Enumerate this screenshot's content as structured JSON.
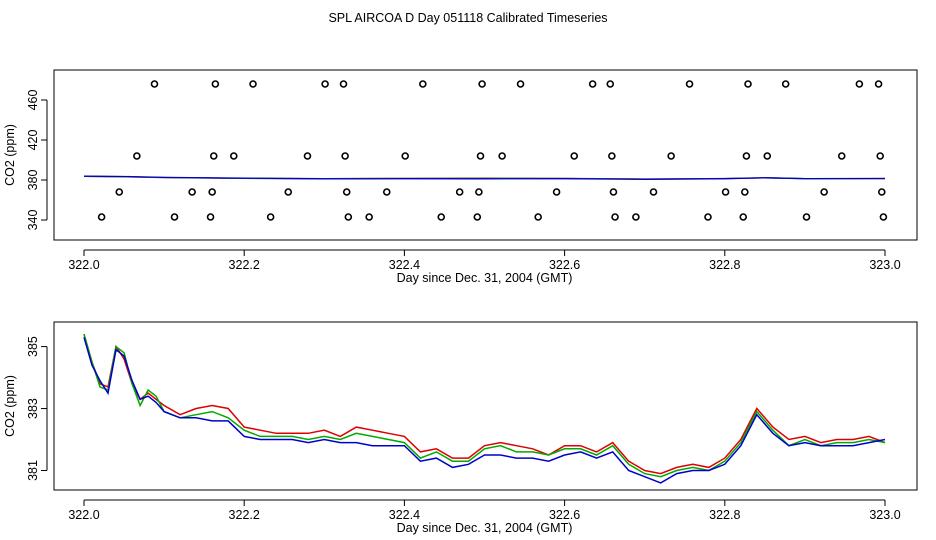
{
  "title": "SPL AIRCOA D  Day 051118  Calibrated Timeseries",
  "chart_data": [
    {
      "type": "scatter+line",
      "xlabel": "Day since Dec. 31, 2004 (GMT)",
      "ylabel": "CO2 (ppm)",
      "xlim": [
        322.0,
        323.0
      ],
      "ylim": [
        330,
        480
      ],
      "xticks": [
        322.0,
        322.2,
        322.4,
        322.6,
        322.8,
        323.0
      ],
      "xtick_labels": [
        "322.0",
        "322.2",
        "322.4",
        "322.6",
        "322.8",
        "323.0"
      ],
      "yticks": [
        340,
        380,
        420,
        460
      ],
      "ytick_labels": [
        "340",
        "380",
        "420",
        "460"
      ],
      "calibration_points": [
        {
          "x": 322.022,
          "y": 343
        },
        {
          "x": 322.044,
          "y": 368
        },
        {
          "x": 322.066,
          "y": 404
        },
        {
          "x": 322.088,
          "y": 476
        },
        {
          "x": 322.113,
          "y": 343
        },
        {
          "x": 322.135,
          "y": 368
        },
        {
          "x": 322.158,
          "y": 343
        },
        {
          "x": 322.16,
          "y": 368
        },
        {
          "x": 322.162,
          "y": 404
        },
        {
          "x": 322.164,
          "y": 476
        },
        {
          "x": 322.187,
          "y": 404
        },
        {
          "x": 322.211,
          "y": 476
        },
        {
          "x": 322.233,
          "y": 343
        },
        {
          "x": 322.255,
          "y": 368
        },
        {
          "x": 322.279,
          "y": 404
        },
        {
          "x": 322.301,
          "y": 476
        },
        {
          "x": 322.324,
          "y": 476
        },
        {
          "x": 322.326,
          "y": 404
        },
        {
          "x": 322.328,
          "y": 368
        },
        {
          "x": 322.33,
          "y": 343
        },
        {
          "x": 322.356,
          "y": 343
        },
        {
          "x": 322.378,
          "y": 368
        },
        {
          "x": 322.401,
          "y": 404
        },
        {
          "x": 322.423,
          "y": 476
        },
        {
          "x": 322.446,
          "y": 343
        },
        {
          "x": 322.469,
          "y": 368
        },
        {
          "x": 322.491,
          "y": 343
        },
        {
          "x": 322.493,
          "y": 368
        },
        {
          "x": 322.495,
          "y": 404
        },
        {
          "x": 322.497,
          "y": 476
        },
        {
          "x": 322.522,
          "y": 404
        },
        {
          "x": 322.545,
          "y": 476
        },
        {
          "x": 322.567,
          "y": 343
        },
        {
          "x": 322.59,
          "y": 368
        },
        {
          "x": 322.612,
          "y": 404
        },
        {
          "x": 322.635,
          "y": 476
        },
        {
          "x": 322.657,
          "y": 476
        },
        {
          "x": 322.659,
          "y": 404
        },
        {
          "x": 322.661,
          "y": 368
        },
        {
          "x": 322.663,
          "y": 343
        },
        {
          "x": 322.689,
          "y": 343
        },
        {
          "x": 322.711,
          "y": 368
        },
        {
          "x": 322.733,
          "y": 404
        },
        {
          "x": 322.756,
          "y": 476
        },
        {
          "x": 322.779,
          "y": 343
        },
        {
          "x": 322.801,
          "y": 368
        },
        {
          "x": 322.823,
          "y": 343
        },
        {
          "x": 322.825,
          "y": 368
        },
        {
          "x": 322.827,
          "y": 404
        },
        {
          "x": 322.829,
          "y": 476
        },
        {
          "x": 322.853,
          "y": 404
        },
        {
          "x": 322.876,
          "y": 476
        },
        {
          "x": 322.902,
          "y": 343
        },
        {
          "x": 322.924,
          "y": 368
        },
        {
          "x": 322.946,
          "y": 404
        },
        {
          "x": 322.968,
          "y": 476
        },
        {
          "x": 322.992,
          "y": 476
        },
        {
          "x": 322.994,
          "y": 404
        },
        {
          "x": 322.996,
          "y": 368
        },
        {
          "x": 322.998,
          "y": 343
        }
      ],
      "baseline_series": [
        {
          "name": "red",
          "color": "#dd0000",
          "x": [
            322.0,
            322.05,
            322.1,
            322.2,
            322.3,
            322.4,
            322.5,
            322.6,
            322.7,
            322.8,
            322.85,
            322.9,
            323.0
          ],
          "values": [
            383.6,
            383.2,
            382.4,
            381.7,
            381.4,
            381.6,
            381.8,
            381.6,
            381.0,
            381.5,
            382.3,
            381.4,
            381.5
          ]
        },
        {
          "name": "green",
          "color": "#00aa00",
          "x": [
            322.0,
            322.05,
            322.1,
            322.2,
            322.3,
            322.4,
            322.5,
            322.6,
            322.7,
            322.8,
            322.85,
            322.9,
            323.0
          ],
          "values": [
            383.7,
            383.3,
            382.5,
            381.6,
            381.3,
            381.5,
            381.6,
            381.5,
            380.9,
            381.4,
            382.2,
            381.3,
            381.4
          ]
        },
        {
          "name": "blue",
          "color": "#0000cc",
          "x": [
            322.0,
            322.05,
            322.1,
            322.2,
            322.3,
            322.4,
            322.5,
            322.6,
            322.7,
            322.8,
            322.85,
            322.9,
            323.0
          ],
          "values": [
            383.8,
            383.5,
            382.6,
            381.8,
            381.2,
            381.3,
            381.2,
            381.3,
            380.7,
            381.3,
            382.2,
            381.4,
            381.5
          ]
        }
      ]
    },
    {
      "type": "line",
      "xlabel": "Day since Dec. 31, 2004 (GMT)",
      "ylabel": "CO2 (ppm)",
      "xlim": [
        322.0,
        323.0
      ],
      "ylim": [
        380.5,
        385.6
      ],
      "xticks": [
        322.0,
        322.2,
        322.4,
        322.6,
        322.8,
        323.0
      ],
      "xtick_labels": [
        "322.0",
        "322.2",
        "322.4",
        "322.6",
        "322.8",
        "323.0"
      ],
      "yticks": [
        381,
        383,
        385
      ],
      "ytick_labels": [
        "381",
        "383",
        "385"
      ],
      "x": [
        322.0,
        322.01,
        322.02,
        322.03,
        322.04,
        322.05,
        322.06,
        322.07,
        322.08,
        322.09,
        322.1,
        322.12,
        322.14,
        322.16,
        322.18,
        322.2,
        322.22,
        322.24,
        322.26,
        322.28,
        322.3,
        322.32,
        322.34,
        322.36,
        322.38,
        322.4,
        322.42,
        322.44,
        322.46,
        322.48,
        322.5,
        322.52,
        322.54,
        322.56,
        322.58,
        322.6,
        322.62,
        322.64,
        322.66,
        322.68,
        322.7,
        322.72,
        322.74,
        322.76,
        322.78,
        322.8,
        322.82,
        322.84,
        322.86,
        322.88,
        322.9,
        322.92,
        322.94,
        322.96,
        322.98,
        323.0
      ],
      "series": [
        {
          "name": "red",
          "color": "#dd0000",
          "values": [
            385.4,
            384.5,
            383.8,
            383.7,
            385.0,
            384.6,
            383.8,
            383.3,
            383.5,
            383.3,
            383.1,
            382.8,
            383.0,
            383.1,
            383.0,
            382.4,
            382.3,
            382.2,
            382.2,
            382.2,
            382.3,
            382.1,
            382.4,
            382.3,
            382.2,
            382.1,
            381.6,
            381.7,
            381.4,
            381.4,
            381.8,
            381.9,
            381.8,
            381.7,
            381.5,
            381.8,
            381.8,
            381.6,
            381.9,
            381.3,
            381.0,
            380.9,
            381.1,
            381.2,
            381.1,
            381.4,
            382.0,
            383.0,
            382.4,
            382.0,
            382.1,
            381.9,
            382.0,
            382.0,
            382.1,
            381.9
          ]
        },
        {
          "name": "green",
          "color": "#00aa00",
          "values": [
            385.4,
            384.5,
            383.7,
            383.6,
            385.0,
            384.8,
            383.8,
            383.1,
            383.6,
            383.4,
            382.9,
            382.7,
            382.8,
            382.9,
            382.7,
            382.3,
            382.1,
            382.1,
            382.1,
            382.0,
            382.1,
            382.0,
            382.2,
            382.1,
            382.0,
            381.9,
            381.4,
            381.6,
            381.3,
            381.3,
            381.7,
            381.8,
            381.6,
            381.6,
            381.5,
            381.7,
            381.7,
            381.5,
            381.8,
            381.2,
            380.9,
            380.8,
            381.0,
            381.1,
            381.0,
            381.3,
            381.9,
            382.9,
            382.3,
            381.8,
            382.0,
            381.8,
            381.9,
            381.9,
            382.0,
            381.9
          ]
        },
        {
          "name": "blue",
          "color": "#0000cc",
          "values": [
            385.3,
            384.4,
            383.9,
            383.5,
            384.9,
            384.7,
            383.9,
            383.3,
            383.4,
            383.2,
            382.9,
            382.7,
            382.7,
            382.6,
            382.6,
            382.1,
            382.0,
            382.0,
            382.0,
            381.9,
            382.0,
            381.9,
            381.9,
            381.8,
            381.8,
            381.8,
            381.3,
            381.4,
            381.1,
            381.2,
            381.5,
            381.5,
            381.4,
            381.4,
            381.3,
            381.5,
            381.6,
            381.4,
            381.6,
            381.0,
            380.8,
            380.6,
            380.9,
            381.0,
            381.0,
            381.2,
            381.8,
            382.8,
            382.2,
            381.8,
            381.9,
            381.8,
            381.8,
            381.8,
            381.9,
            382.0
          ]
        }
      ]
    }
  ]
}
